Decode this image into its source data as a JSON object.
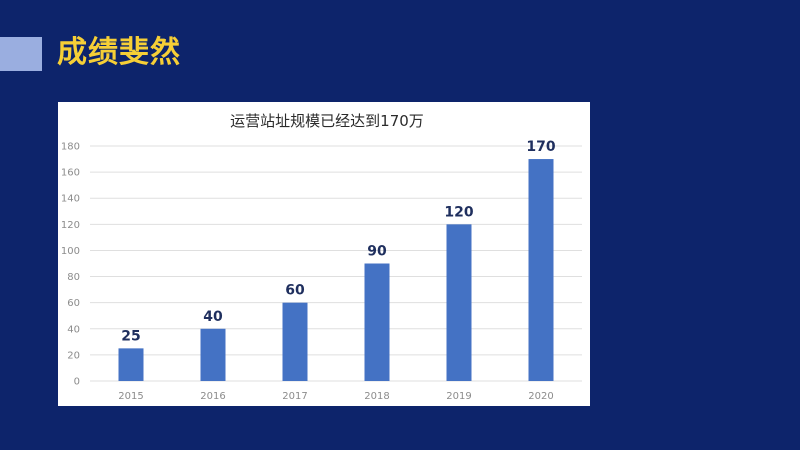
{
  "slide": {
    "title": "成绩斐然",
    "background_color": "#0d246b",
    "title_color": "#f6cf36",
    "accent_color": "#9aaee0"
  },
  "chart_data": {
    "type": "bar",
    "title": "运营站址规模已经达到170万",
    "categories": [
      "2015",
      "2016",
      "2017",
      "2018",
      "2019",
      "2020"
    ],
    "values": [
      25,
      40,
      60,
      90,
      120,
      170
    ],
    "ylim": [
      0,
      180
    ],
    "yticks": [
      0,
      20,
      40,
      60,
      80,
      100,
      120,
      140,
      160,
      180
    ],
    "xlabel": "",
    "ylabel": "",
    "grid": true,
    "bar_color": "#4472c4"
  }
}
